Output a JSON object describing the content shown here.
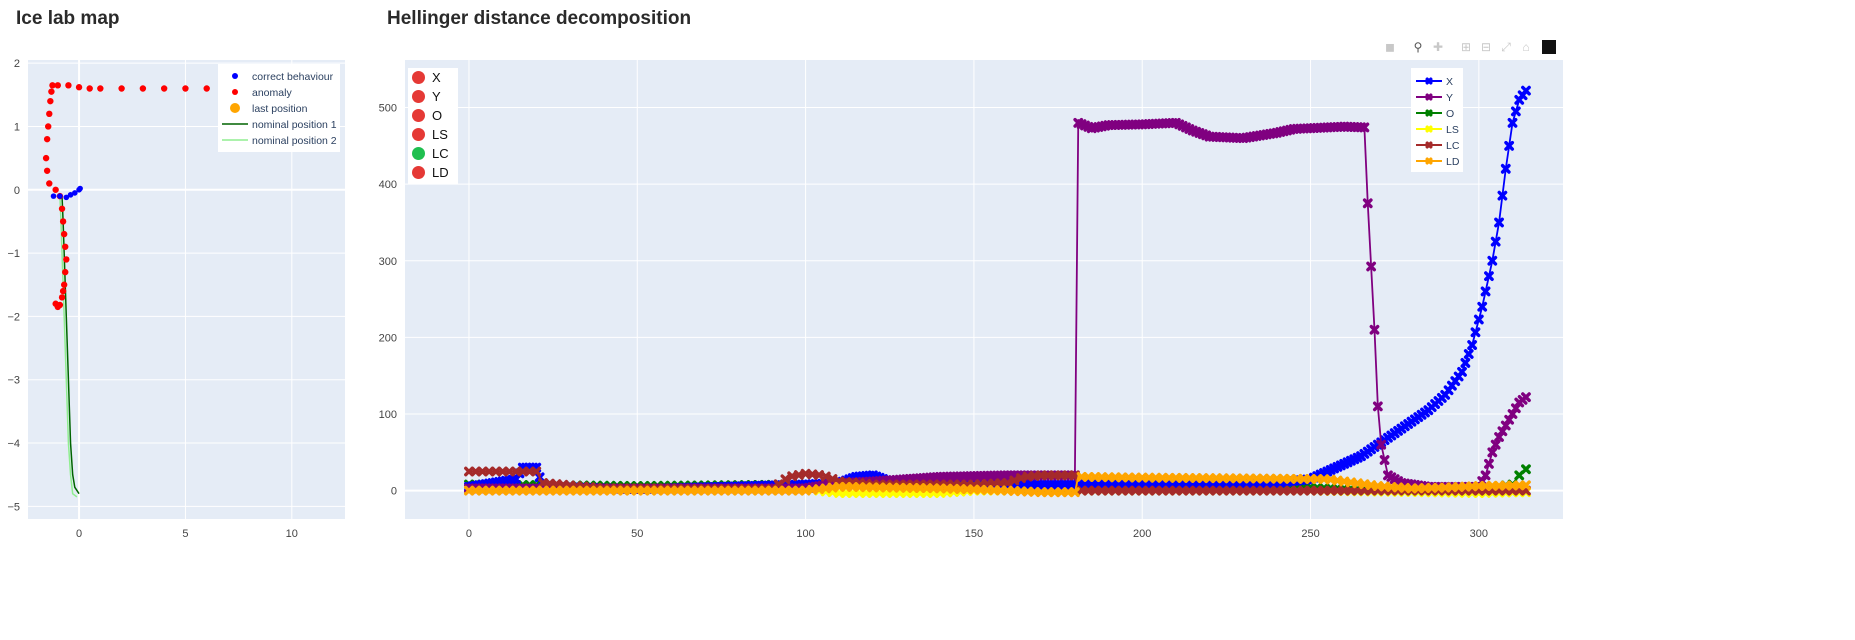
{
  "map": {
    "title": "Ice lab map",
    "legend": [
      "correct behaviour",
      "anomaly",
      "last position",
      "nominal position 1",
      "nominal position 2"
    ],
    "colors": {
      "correct": "#0000ff",
      "anomaly": "#ff0000",
      "last": "#ffa500",
      "nominal1": "#006400",
      "nominal2": "#90ee90"
    }
  },
  "decomposition": {
    "title": "Hellinger distance decomposition",
    "legend": [
      "X",
      "Y",
      "O",
      "LS",
      "LC",
      "LD"
    ],
    "colors": {
      "X": "#0000ff",
      "Y": "#800080",
      "O": "#008000",
      "LS": "#ffff00",
      "LC": "#a52a2a",
      "LD": "#ffa500"
    }
  },
  "status": [
    {
      "label": "X",
      "color": "#e53935"
    },
    {
      "label": "Y",
      "color": "#e53935"
    },
    {
      "label": "O",
      "color": "#e53935"
    },
    {
      "label": "LS",
      "color": "#e53935"
    },
    {
      "label": "LC",
      "color": "#1fbf4f"
    },
    {
      "label": "LD",
      "color": "#e53935"
    }
  ],
  "chart_data": [
    {
      "type": "scatter",
      "title": "Ice lab map",
      "xlim": [
        -2.4,
        12.5
      ],
      "ylim": [
        -5.2,
        2.05
      ],
      "xticks": [
        0,
        5,
        10
      ],
      "yticks": [
        2,
        1,
        0,
        -1,
        -2,
        -3,
        -4,
        -5
      ],
      "legend_position": "top-right",
      "series": [
        {
          "name": "correct behaviour",
          "points": [
            [
              -1.2,
              -0.1
            ],
            [
              -0.9,
              -0.1
            ],
            [
              -0.6,
              -0.12
            ],
            [
              -0.4,
              -0.08
            ],
            [
              -0.2,
              -0.05
            ],
            [
              0.0,
              0.0
            ],
            [
              0.05,
              0.02
            ]
          ]
        },
        {
          "name": "anomaly",
          "points": [
            [
              -1.1,
              -1.8
            ],
            [
              -1.0,
              -1.85
            ],
            [
              -0.9,
              -1.82
            ],
            [
              -0.8,
              -1.7
            ],
            [
              -0.75,
              -1.6
            ],
            [
              -0.7,
              -1.5
            ],
            [
              -0.65,
              -1.3
            ],
            [
              -0.6,
              -1.1
            ],
            [
              -0.65,
              -0.9
            ],
            [
              -0.7,
              -0.7
            ],
            [
              -0.75,
              -0.5
            ],
            [
              -0.8,
              -0.3
            ],
            [
              -0.9,
              -0.1
            ],
            [
              -1.1,
              0.0
            ],
            [
              -1.4,
              0.1
            ],
            [
              -1.5,
              0.3
            ],
            [
              -1.55,
              0.5
            ],
            [
              -1.5,
              0.8
            ],
            [
              -1.45,
              1.0
            ],
            [
              -1.4,
              1.2
            ],
            [
              -1.35,
              1.4
            ],
            [
              -1.3,
              1.55
            ],
            [
              -1.25,
              1.65
            ],
            [
              -1.0,
              1.65
            ],
            [
              -0.5,
              1.65
            ],
            [
              0.0,
              1.62
            ],
            [
              0.5,
              1.6
            ],
            [
              1.0,
              1.6
            ],
            [
              2.0,
              1.6
            ],
            [
              3.0,
              1.6
            ],
            [
              4.0,
              1.6
            ],
            [
              5.0,
              1.6
            ],
            [
              6.0,
              1.6
            ],
            [
              7.0,
              1.6
            ],
            [
              8.0,
              1.6
            ],
            [
              9.0,
              1.6
            ],
            [
              10.0,
              1.58
            ],
            [
              10.5,
              1.58
            ]
          ]
        },
        {
          "name": "last position",
          "points": []
        },
        {
          "name": "nominal position 1",
          "points": [
            [
              -0.8,
              -0.1
            ],
            [
              -0.75,
              -0.5
            ],
            [
              -0.7,
              -1.0
            ],
            [
              -0.65,
              -1.5
            ],
            [
              -0.6,
              -2.0
            ],
            [
              -0.55,
              -2.5
            ],
            [
              -0.5,
              -3.0
            ],
            [
              -0.45,
              -3.5
            ],
            [
              -0.4,
              -4.0
            ],
            [
              -0.3,
              -4.5
            ],
            [
              -0.2,
              -4.7
            ],
            [
              0.0,
              -4.8
            ]
          ]
        },
        {
          "name": "nominal position 2",
          "points": [
            [
              -0.9,
              -0.1
            ],
            [
              -0.85,
              -0.5
            ],
            [
              -0.8,
              -1.0
            ],
            [
              -0.75,
              -1.5
            ],
            [
              -0.7,
              -2.0
            ],
            [
              -0.65,
              -2.5
            ],
            [
              -0.6,
              -3.0
            ],
            [
              -0.55,
              -3.5
            ],
            [
              -0.5,
              -4.0
            ],
            [
              -0.4,
              -4.5
            ],
            [
              -0.3,
              -4.8
            ],
            [
              -0.1,
              -4.85
            ]
          ]
        }
      ]
    },
    {
      "type": "line",
      "title": "Hellinger distance decomposition",
      "xlim": [
        -19,
        325
      ],
      "ylim": [
        -37,
        562
      ],
      "xticks": [
        0,
        50,
        100,
        150,
        200,
        250,
        300
      ],
      "yticks": [
        0,
        100,
        200,
        300,
        400,
        500
      ],
      "legend_position": "top-right",
      "series": [
        {
          "name": "X",
          "points": [
            [
              0,
              5
            ],
            [
              14,
              15
            ],
            [
              16,
              30
            ],
            [
              20,
              30
            ],
            [
              22,
              5
            ],
            [
              50,
              2
            ],
            [
              100,
              8
            ],
            [
              110,
              10
            ],
            [
              115,
              18
            ],
            [
              120,
              20
            ],
            [
              125,
              12
            ],
            [
              140,
              8
            ],
            [
              160,
              8
            ],
            [
              200,
              8
            ],
            [
              240,
              10
            ],
            [
              250,
              15
            ],
            [
              255,
              25
            ],
            [
              260,
              35
            ],
            [
              265,
              45
            ],
            [
              270,
              60
            ],
            [
              275,
              75
            ],
            [
              280,
              90
            ],
            [
              285,
              105
            ],
            [
              290,
              125
            ],
            [
              295,
              155
            ],
            [
              298,
              190
            ],
            [
              301,
              240
            ],
            [
              304,
              300
            ],
            [
              306,
              350
            ],
            [
              308,
              420
            ],
            [
              310,
              480
            ],
            [
              312,
              510
            ],
            [
              314,
              522
            ]
          ]
        },
        {
          "name": "Y",
          "points": [
            [
              0,
              3
            ],
            [
              100,
              3
            ],
            [
              110,
              10
            ],
            [
              120,
              12
            ],
            [
              130,
              15
            ],
            [
              140,
              18
            ],
            [
              160,
              20
            ],
            [
              180,
              20
            ],
            [
              181,
              480
            ],
            [
              185,
              473
            ],
            [
              190,
              477
            ],
            [
              200,
              478
            ],
            [
              210,
              480
            ],
            [
              215,
              470
            ],
            [
              220,
              462
            ],
            [
              230,
              460
            ],
            [
              240,
              467
            ],
            [
              245,
              472
            ],
            [
              260,
              475
            ],
            [
              266,
              474
            ],
            [
              267,
              375
            ],
            [
              269,
              210
            ],
            [
              270,
              110
            ],
            [
              271,
              60
            ],
            [
              273,
              20
            ],
            [
              277,
              10
            ],
            [
              285,
              5
            ],
            [
              300,
              5
            ],
            [
              302,
              20
            ],
            [
              304,
              50
            ],
            [
              306,
              70
            ],
            [
              308,
              85
            ],
            [
              310,
              100
            ],
            [
              312,
              115
            ],
            [
              314,
              122
            ]
          ]
        },
        {
          "name": "O",
          "points": [
            [
              0,
              8
            ],
            [
              50,
              6
            ],
            [
              100,
              8
            ],
            [
              150,
              4
            ],
            [
              200,
              4
            ],
            [
              250,
              4
            ],
            [
              280,
              0
            ],
            [
              300,
              2
            ],
            [
              310,
              8
            ],
            [
              312,
              20
            ],
            [
              314,
              28
            ]
          ]
        },
        {
          "name": "LS",
          "points": [
            [
              0,
              1
            ],
            [
              50,
              2
            ],
            [
              100,
              2
            ],
            [
              110,
              -3
            ],
            [
              140,
              -3
            ],
            [
              150,
              0
            ],
            [
              200,
              0
            ],
            [
              250,
              0
            ],
            [
              300,
              -3
            ],
            [
              314,
              -2
            ]
          ]
        },
        {
          "name": "LC",
          "points": [
            [
              0,
              25
            ],
            [
              20,
              25
            ],
            [
              22,
              10
            ],
            [
              40,
              3
            ],
            [
              90,
              2
            ],
            [
              95,
              18
            ],
            [
              100,
              22
            ],
            [
              105,
              20
            ],
            [
              110,
              12
            ],
            [
              120,
              8
            ],
            [
              150,
              8
            ],
            [
              160,
              10
            ],
            [
              165,
              18
            ],
            [
              170,
              20
            ],
            [
              180,
              20
            ],
            [
              181,
              0
            ],
            [
              250,
              0
            ],
            [
              300,
              0
            ],
            [
              314,
              0
            ]
          ]
        },
        {
          "name": "LD",
          "points": [
            [
              0,
              0
            ],
            [
              50,
              0
            ],
            [
              100,
              0
            ],
            [
              110,
              5
            ],
            [
              140,
              3
            ],
            [
              160,
              0
            ],
            [
              170,
              -2
            ],
            [
              180,
              -2
            ],
            [
              181,
              18
            ],
            [
              200,
              17
            ],
            [
              230,
              16
            ],
            [
              255,
              15
            ],
            [
              260,
              12
            ],
            [
              270,
              6
            ],
            [
              280,
              3
            ],
            [
              290,
              4
            ],
            [
              300,
              6
            ],
            [
              314,
              7
            ]
          ]
        }
      ]
    }
  ]
}
